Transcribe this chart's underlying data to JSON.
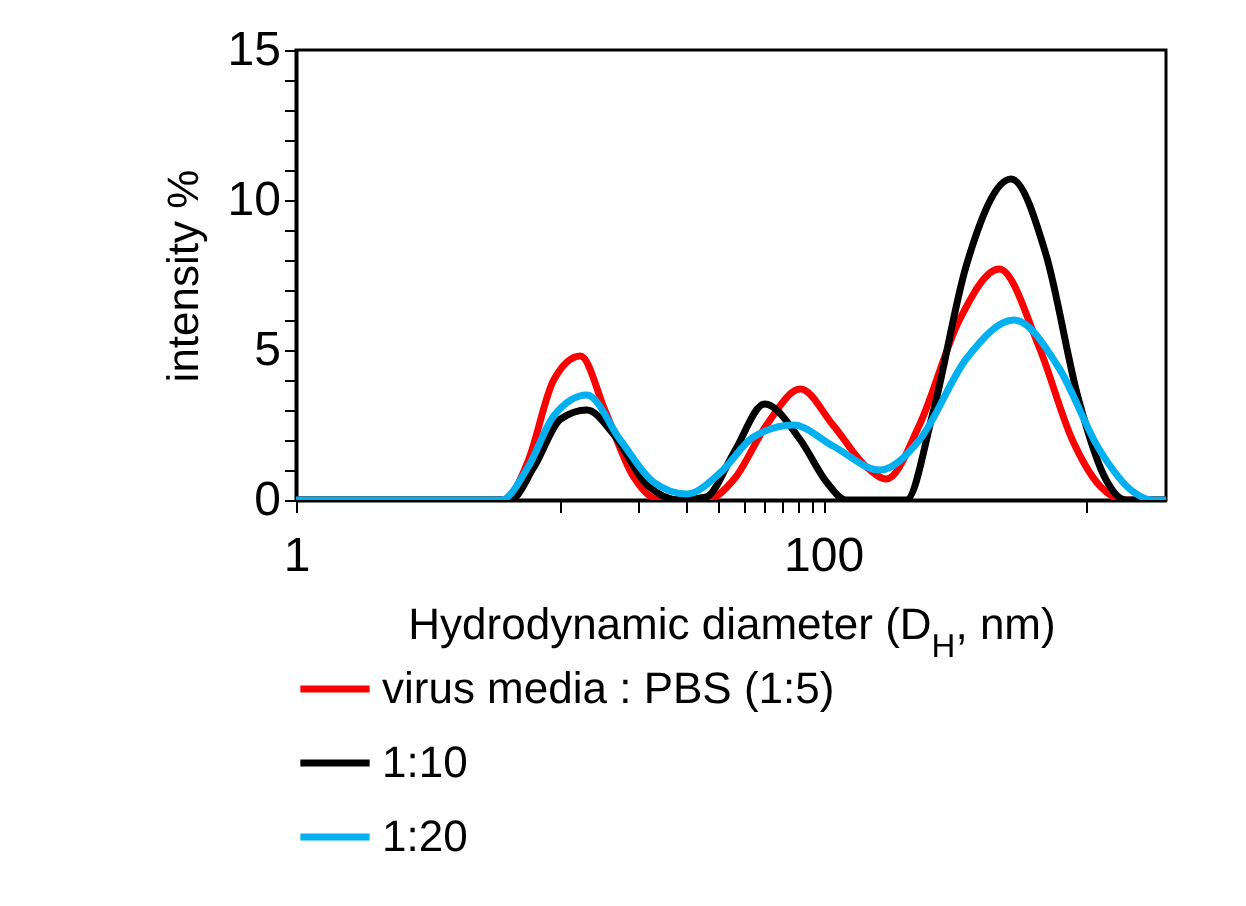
{
  "chart_data": {
    "type": "line",
    "xlabel": "Hydrodynamic diameter (D$_{H}$, nm)",
    "ylabel": "intensity %",
    "log": "x",
    "xlim": [
      1,
      2000
    ],
    "xticks": [
      1,
      {
        "value": 10,
        "label": null
      },
      {
        "value": 20,
        "label": null
      },
      {
        "value": 30,
        "label": null
      },
      {
        "value": 40,
        "label": null
      },
      {
        "value": 50,
        "label": null
      },
      {
        "value": 60,
        "label": null
      },
      {
        "value": 70,
        "label": null
      },
      {
        "value": 80,
        "label": null
      },
      {
        "value": 90,
        "label": null
      },
      100,
      {
        "value": 1000,
        "label": null
      }
    ],
    "ylim": [
      0,
      15
    ],
    "yticks": [
      0,
      {
        "value": 1,
        "label": null
      },
      {
        "value": 2,
        "label": null
      },
      {
        "value": 3,
        "label": null
      },
      {
        "value": 4,
        "label": null
      },
      5,
      {
        "value": 6,
        "label": null
      },
      {
        "value": 7,
        "label": null
      },
      {
        "value": 8,
        "label": null
      },
      {
        "value": 9,
        "label": null
      },
      10,
      {
        "value": 11,
        "label": null
      },
      {
        "value": 12,
        "label": null
      },
      {
        "value": 13,
        "label": null
      },
      {
        "value": 14,
        "label": null
      },
      15
    ],
    "grid": false,
    "legend": "bottom",
    "marker": "none",
    "line_style": "solid",
    "series": [
      {
        "name": "virus media : PBS (1:5)",
        "color": "#ff0000",
        "x": [
          1,
          4.5,
          6.2,
          7.6,
          9.5,
          12,
          15,
          19,
          24,
          36,
          46,
          61,
          82,
          109,
          146,
          174,
          232,
          329,
          466,
          660,
          883,
          1114,
          1406,
          2000
        ],
        "values": [
          0,
          0,
          0,
          1.3,
          4.0,
          4.8,
          2.9,
          0.8,
          0,
          0,
          0.7,
          2.5,
          3.7,
          2.5,
          1.1,
          0.7,
          2.5,
          6.0,
          7.7,
          5.1,
          2.0,
          0.5,
          0,
          0
        ]
      },
      {
        "name": "1:10",
        "color": "#000000",
        "x": [
          1,
          4.5,
          6.5,
          8,
          10.1,
          12.7,
          16,
          21.5,
          28.7,
          36,
          46,
          60,
          82,
          103,
          122,
          207,
          261,
          349,
          517,
          700,
          935,
          1180,
          1406,
          2000
        ],
        "values": [
          0,
          0,
          0,
          1.1,
          2.7,
          3.0,
          2.2,
          0.5,
          0,
          0.1,
          1.6,
          3.2,
          2.0,
          0.6,
          0,
          0,
          2.9,
          7.8,
          10.7,
          8.2,
          3.3,
          0.7,
          0,
          0
        ]
      },
      {
        "name": "1:20",
        "color": "#00b0f0",
        "x": [
          1,
          4.5,
          6,
          7.6,
          9.5,
          12.7,
          17,
          22.7,
          30.4,
          40.6,
          54.4,
          77,
          109,
          164,
          232,
          349,
          530,
          785,
          1114,
          1489,
          1770,
          2000
        ],
        "values": [
          0,
          0,
          0,
          1.1,
          2.8,
          3.5,
          2.0,
          0.6,
          0.2,
          0.9,
          2.1,
          2.5,
          1.8,
          1.0,
          2.0,
          4.7,
          6.0,
          4.4,
          1.7,
          0.3,
          0,
          0
        ]
      }
    ]
  }
}
